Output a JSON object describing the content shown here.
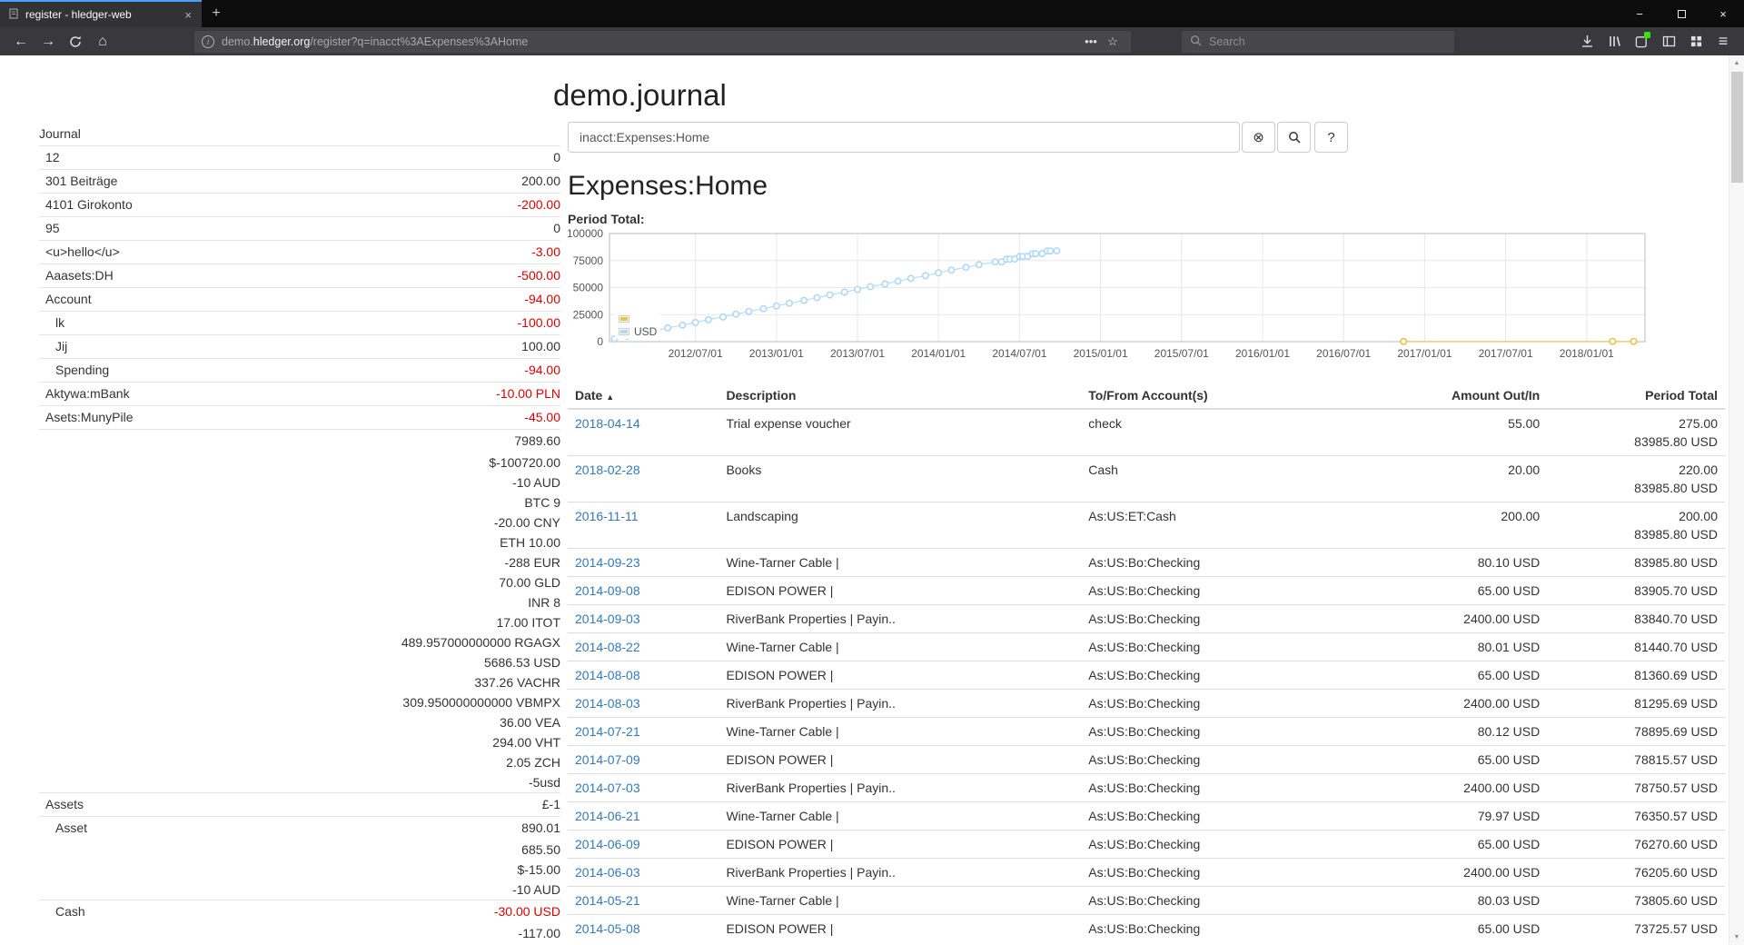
{
  "browser": {
    "tab": {
      "title": "register - hledger-web"
    },
    "url": {
      "pre": "demo.",
      "domain": "hledger.org",
      "path": "/register?q=inacct%3AExpenses%3AHome"
    },
    "search_placeholder": "Search",
    "icons": {
      "close": "×",
      "plus": "+",
      "minimize": "−",
      "back": "←",
      "forward": "→",
      "home": "⌂",
      "dots": "•••",
      "star": "☆",
      "hamburger": "≡",
      "info": "i",
      "scroll_up": "▲",
      "scroll_down": "▼"
    }
  },
  "page": {
    "title": "demo.journal",
    "query": "inacct:Expenses:Home",
    "heading": "Expenses:Home",
    "chart_label": "Period Total:"
  },
  "search": {
    "clear_icon": "⊗",
    "help_label": "?"
  },
  "sidebar": {
    "rows": [
      {
        "label": "Journal",
        "amount": "",
        "level": 0,
        "negative": false,
        "cont": false
      },
      {
        "label": "12",
        "amount": "0",
        "level": 1,
        "negative": false,
        "cont": false
      },
      {
        "label": "301 Beiträge",
        "amount": "200.00",
        "level": 1,
        "negative": false,
        "cont": false
      },
      {
        "label": "4101 Girokonto",
        "amount": "-200.00",
        "level": 1,
        "negative": true,
        "cont": false
      },
      {
        "label": "95",
        "amount": "0",
        "level": 1,
        "negative": false,
        "cont": false
      },
      {
        "label": "<u>hello</u>",
        "amount": "-3.00",
        "level": 1,
        "negative": true,
        "cont": false
      },
      {
        "label": "Aaasets:DH",
        "amount": "-500.00",
        "level": 1,
        "negative": true,
        "cont": false
      },
      {
        "label": "Account",
        "amount": "-94.00",
        "level": 1,
        "negative": true,
        "cont": false
      },
      {
        "label": "lk",
        "amount": "-100.00",
        "level": 2,
        "negative": true,
        "cont": false
      },
      {
        "label": "Jij",
        "amount": "100.00",
        "level": 2,
        "negative": false,
        "cont": false
      },
      {
        "label": "Spending",
        "amount": "-94.00",
        "level": 2,
        "negative": true,
        "cont": false
      },
      {
        "label": "Aktywa:mBank",
        "amount": "-10.00 PLN",
        "level": 1,
        "negative": true,
        "cont": false
      },
      {
        "label": "Asets:MunyPile",
        "amount": "-45.00",
        "level": 1,
        "negative": true,
        "cont": false
      },
      {
        "label": "",
        "amount": "7989.60",
        "level": 1,
        "negative": false,
        "cont": false
      },
      {
        "label": "",
        "amount": "$-100720.00",
        "level": 1,
        "negative": false,
        "cont": true
      },
      {
        "label": "",
        "amount": "-10 AUD",
        "level": 1,
        "negative": false,
        "cont": true
      },
      {
        "label": "",
        "amount": "BTC 9",
        "level": 1,
        "negative": false,
        "cont": true
      },
      {
        "label": "",
        "amount": "-20.00 CNY",
        "level": 1,
        "negative": false,
        "cont": true
      },
      {
        "label": "",
        "amount": "ETH 10.00",
        "level": 1,
        "negative": false,
        "cont": true
      },
      {
        "label": "",
        "amount": "-288 EUR",
        "level": 1,
        "negative": false,
        "cont": true
      },
      {
        "label": "",
        "amount": "70.00 GLD",
        "level": 1,
        "negative": false,
        "cont": true
      },
      {
        "label": "",
        "amount": "INR 8",
        "level": 1,
        "negative": false,
        "cont": true
      },
      {
        "label": "",
        "amount": "17.00 ITOT",
        "level": 1,
        "negative": false,
        "cont": true
      },
      {
        "label": "",
        "amount": "489.957000000000 RGAGX",
        "level": 1,
        "negative": false,
        "cont": true
      },
      {
        "label": "",
        "amount": "5686.53 USD",
        "level": 1,
        "negative": false,
        "cont": true
      },
      {
        "label": "",
        "amount": "337.26 VACHR",
        "level": 1,
        "negative": false,
        "cont": true
      },
      {
        "label": "",
        "amount": "309.950000000000 VBMPX",
        "level": 1,
        "negative": false,
        "cont": true
      },
      {
        "label": "",
        "amount": "36.00 VEA",
        "level": 1,
        "negative": false,
        "cont": true
      },
      {
        "label": "",
        "amount": "294.00 VHT",
        "level": 1,
        "negative": false,
        "cont": true
      },
      {
        "label": "",
        "amount": "2.05 ZCH",
        "level": 1,
        "negative": false,
        "cont": true
      },
      {
        "label": "",
        "amount": "-5usd",
        "level": 1,
        "negative": false,
        "cont": true
      },
      {
        "label": "Assets",
        "amount": "£-1",
        "level": 1,
        "negative": false,
        "cont": false
      },
      {
        "label": "Asset",
        "amount": "890.01",
        "level": 2,
        "negative": false,
        "cont": false
      },
      {
        "label": "",
        "amount": "685.50",
        "level": 2,
        "negative": false,
        "cont": true
      },
      {
        "label": "",
        "amount": "$-15.00",
        "level": 2,
        "negative": false,
        "cont": true
      },
      {
        "label": "",
        "amount": "-10 AUD",
        "level": 2,
        "negative": false,
        "cont": true
      },
      {
        "label": "Cash",
        "amount": "-30.00 USD",
        "level": 2,
        "negative": true,
        "cont": false
      },
      {
        "label": "",
        "amount": "-117.00",
        "level": 2,
        "negative": false,
        "cont": true
      }
    ]
  },
  "register": {
    "columns": [
      "Date",
      "Description",
      "To/From Account(s)",
      "Amount Out/In",
      "Period Total"
    ],
    "sort_icon": "▲",
    "rows": [
      {
        "date": "2018-04-14",
        "description": "Trial expense voucher",
        "account": "check",
        "amount": "55.00",
        "total": [
          "275.00",
          "83985.80 USD"
        ]
      },
      {
        "date": "2018-02-28",
        "description": "Books",
        "account": "Cash",
        "amount": "20.00",
        "total": [
          "220.00",
          "83985.80 USD"
        ]
      },
      {
        "date": "2016-11-11",
        "description": "Landscaping",
        "account": "As:US:ET:Cash",
        "amount": "200.00",
        "total": [
          "200.00",
          "83985.80 USD"
        ]
      },
      {
        "date": "2014-09-23",
        "description": "Wine-Tarner Cable |",
        "account": "As:US:Bo:Checking",
        "amount": "80.10 USD",
        "total": [
          "83985.80 USD"
        ]
      },
      {
        "date": "2014-09-08",
        "description": "EDISON POWER |",
        "account": "As:US:Bo:Checking",
        "amount": "65.00 USD",
        "total": [
          "83905.70 USD"
        ]
      },
      {
        "date": "2014-09-03",
        "description": "RiverBank Properties | Payin..",
        "account": "As:US:Bo:Checking",
        "amount": "2400.00 USD",
        "total": [
          "83840.70 USD"
        ]
      },
      {
        "date": "2014-08-22",
        "description": "Wine-Tarner Cable |",
        "account": "As:US:Bo:Checking",
        "amount": "80.01 USD",
        "total": [
          "81440.70 USD"
        ]
      },
      {
        "date": "2014-08-08",
        "description": "EDISON POWER |",
        "account": "As:US:Bo:Checking",
        "amount": "65.00 USD",
        "total": [
          "81360.69 USD"
        ]
      },
      {
        "date": "2014-08-03",
        "description": "RiverBank Properties | Payin..",
        "account": "As:US:Bo:Checking",
        "amount": "2400.00 USD",
        "total": [
          "81295.69 USD"
        ]
      },
      {
        "date": "2014-07-21",
        "description": "Wine-Tarner Cable |",
        "account": "As:US:Bo:Checking",
        "amount": "80.12 USD",
        "total": [
          "78895.69 USD"
        ]
      },
      {
        "date": "2014-07-09",
        "description": "EDISON POWER |",
        "account": "As:US:Bo:Checking",
        "amount": "65.00 USD",
        "total": [
          "78815.57 USD"
        ]
      },
      {
        "date": "2014-07-03",
        "description": "RiverBank Properties | Payin..",
        "account": "As:US:Bo:Checking",
        "amount": "2400.00 USD",
        "total": [
          "78750.57 USD"
        ]
      },
      {
        "date": "2014-06-21",
        "description": "Wine-Tarner Cable |",
        "account": "As:US:Bo:Checking",
        "amount": "79.97 USD",
        "total": [
          "76350.57 USD"
        ]
      },
      {
        "date": "2014-06-09",
        "description": "EDISON POWER |",
        "account": "As:US:Bo:Checking",
        "amount": "65.00 USD",
        "total": [
          "76270.60 USD"
        ]
      },
      {
        "date": "2014-06-03",
        "description": "RiverBank Properties | Payin..",
        "account": "As:US:Bo:Checking",
        "amount": "2400.00 USD",
        "total": [
          "76205.60 USD"
        ]
      },
      {
        "date": "2014-05-21",
        "description": "Wine-Tarner Cable |",
        "account": "As:US:Bo:Checking",
        "amount": "80.03 USD",
        "total": [
          "73805.60 USD"
        ]
      },
      {
        "date": "2014-05-08",
        "description": "EDISON POWER |",
        "account": "As:US:Bo:Checking",
        "amount": "65.00 USD",
        "total": [
          "73725.57 USD"
        ]
      }
    ]
  },
  "chart_data": {
    "type": "line",
    "title": "Period Total:",
    "xlim": [
      2011.97,
      2018.36
    ],
    "ylim": [
      0,
      100000
    ],
    "yticks": [
      {
        "v": 0,
        "label": "0"
      },
      {
        "v": 25000,
        "label": "25000"
      },
      {
        "v": 50000,
        "label": "50000"
      },
      {
        "v": 75000,
        "label": "75000"
      },
      {
        "v": 100000,
        "label": "100000"
      }
    ],
    "xticks": [
      {
        "v": 2012.5,
        "label": "2012/07/01"
      },
      {
        "v": 2013.0,
        "label": "2013/01/01"
      },
      {
        "v": 2013.5,
        "label": "2013/07/01"
      },
      {
        "v": 2014.0,
        "label": "2014/01/01"
      },
      {
        "v": 2014.5,
        "label": "2014/07/01"
      },
      {
        "v": 2015.0,
        "label": "2015/01/01"
      },
      {
        "v": 2015.5,
        "label": "2015/07/01"
      },
      {
        "v": 2016.0,
        "label": "2016/01/01"
      },
      {
        "v": 2016.5,
        "label": "2016/07/01"
      },
      {
        "v": 2017.0,
        "label": "2017/01/01"
      },
      {
        "v": 2017.5,
        "label": "2017/07/01"
      },
      {
        "v": 2018.0,
        "label": "2018/01/01"
      }
    ],
    "legend": [
      {
        "label": "",
        "color": "#edc240"
      },
      {
        "label": "USD",
        "color": "#afd8f8"
      }
    ],
    "series": [
      {
        "name": "",
        "color": "#edc240",
        "points": [
          [
            2016.87,
            200
          ],
          [
            2018.16,
            220
          ],
          [
            2018.29,
            275
          ]
        ]
      },
      {
        "name": "USD",
        "color": "#afd8f8",
        "points": [
          [
            2012.0,
            2500
          ],
          [
            2012.08,
            5045
          ],
          [
            2012.17,
            7590
          ],
          [
            2012.25,
            10135
          ],
          [
            2012.33,
            12680
          ],
          [
            2012.42,
            15225
          ],
          [
            2012.5,
            17770
          ],
          [
            2012.58,
            20315
          ],
          [
            2012.67,
            22860
          ],
          [
            2012.75,
            25405
          ],
          [
            2012.83,
            27950
          ],
          [
            2012.92,
            30495
          ],
          [
            2013.0,
            33040
          ],
          [
            2013.08,
            35585
          ],
          [
            2013.17,
            38130
          ],
          [
            2013.25,
            40675
          ],
          [
            2013.33,
            43220
          ],
          [
            2013.42,
            45765
          ],
          [
            2013.5,
            48310
          ],
          [
            2013.58,
            50855
          ],
          [
            2013.67,
            53400
          ],
          [
            2013.75,
            55945
          ],
          [
            2013.83,
            58490
          ],
          [
            2013.92,
            61035
          ],
          [
            2014.0,
            63580
          ],
          [
            2014.08,
            66125
          ],
          [
            2014.17,
            68670
          ],
          [
            2014.25,
            71215
          ],
          [
            2014.35,
            73725.57
          ],
          [
            2014.39,
            73805.6
          ],
          [
            2014.42,
            76205.6
          ],
          [
            2014.44,
            76270.6
          ],
          [
            2014.47,
            76350.57
          ],
          [
            2014.5,
            78750.57
          ],
          [
            2014.52,
            78815.57
          ],
          [
            2014.55,
            78895.69
          ],
          [
            2014.58,
            81295.69
          ],
          [
            2014.6,
            81360.69
          ],
          [
            2014.64,
            81440.7
          ],
          [
            2014.67,
            83840.7
          ],
          [
            2014.69,
            83905.7
          ],
          [
            2014.73,
            83985.8
          ]
        ]
      }
    ]
  }
}
